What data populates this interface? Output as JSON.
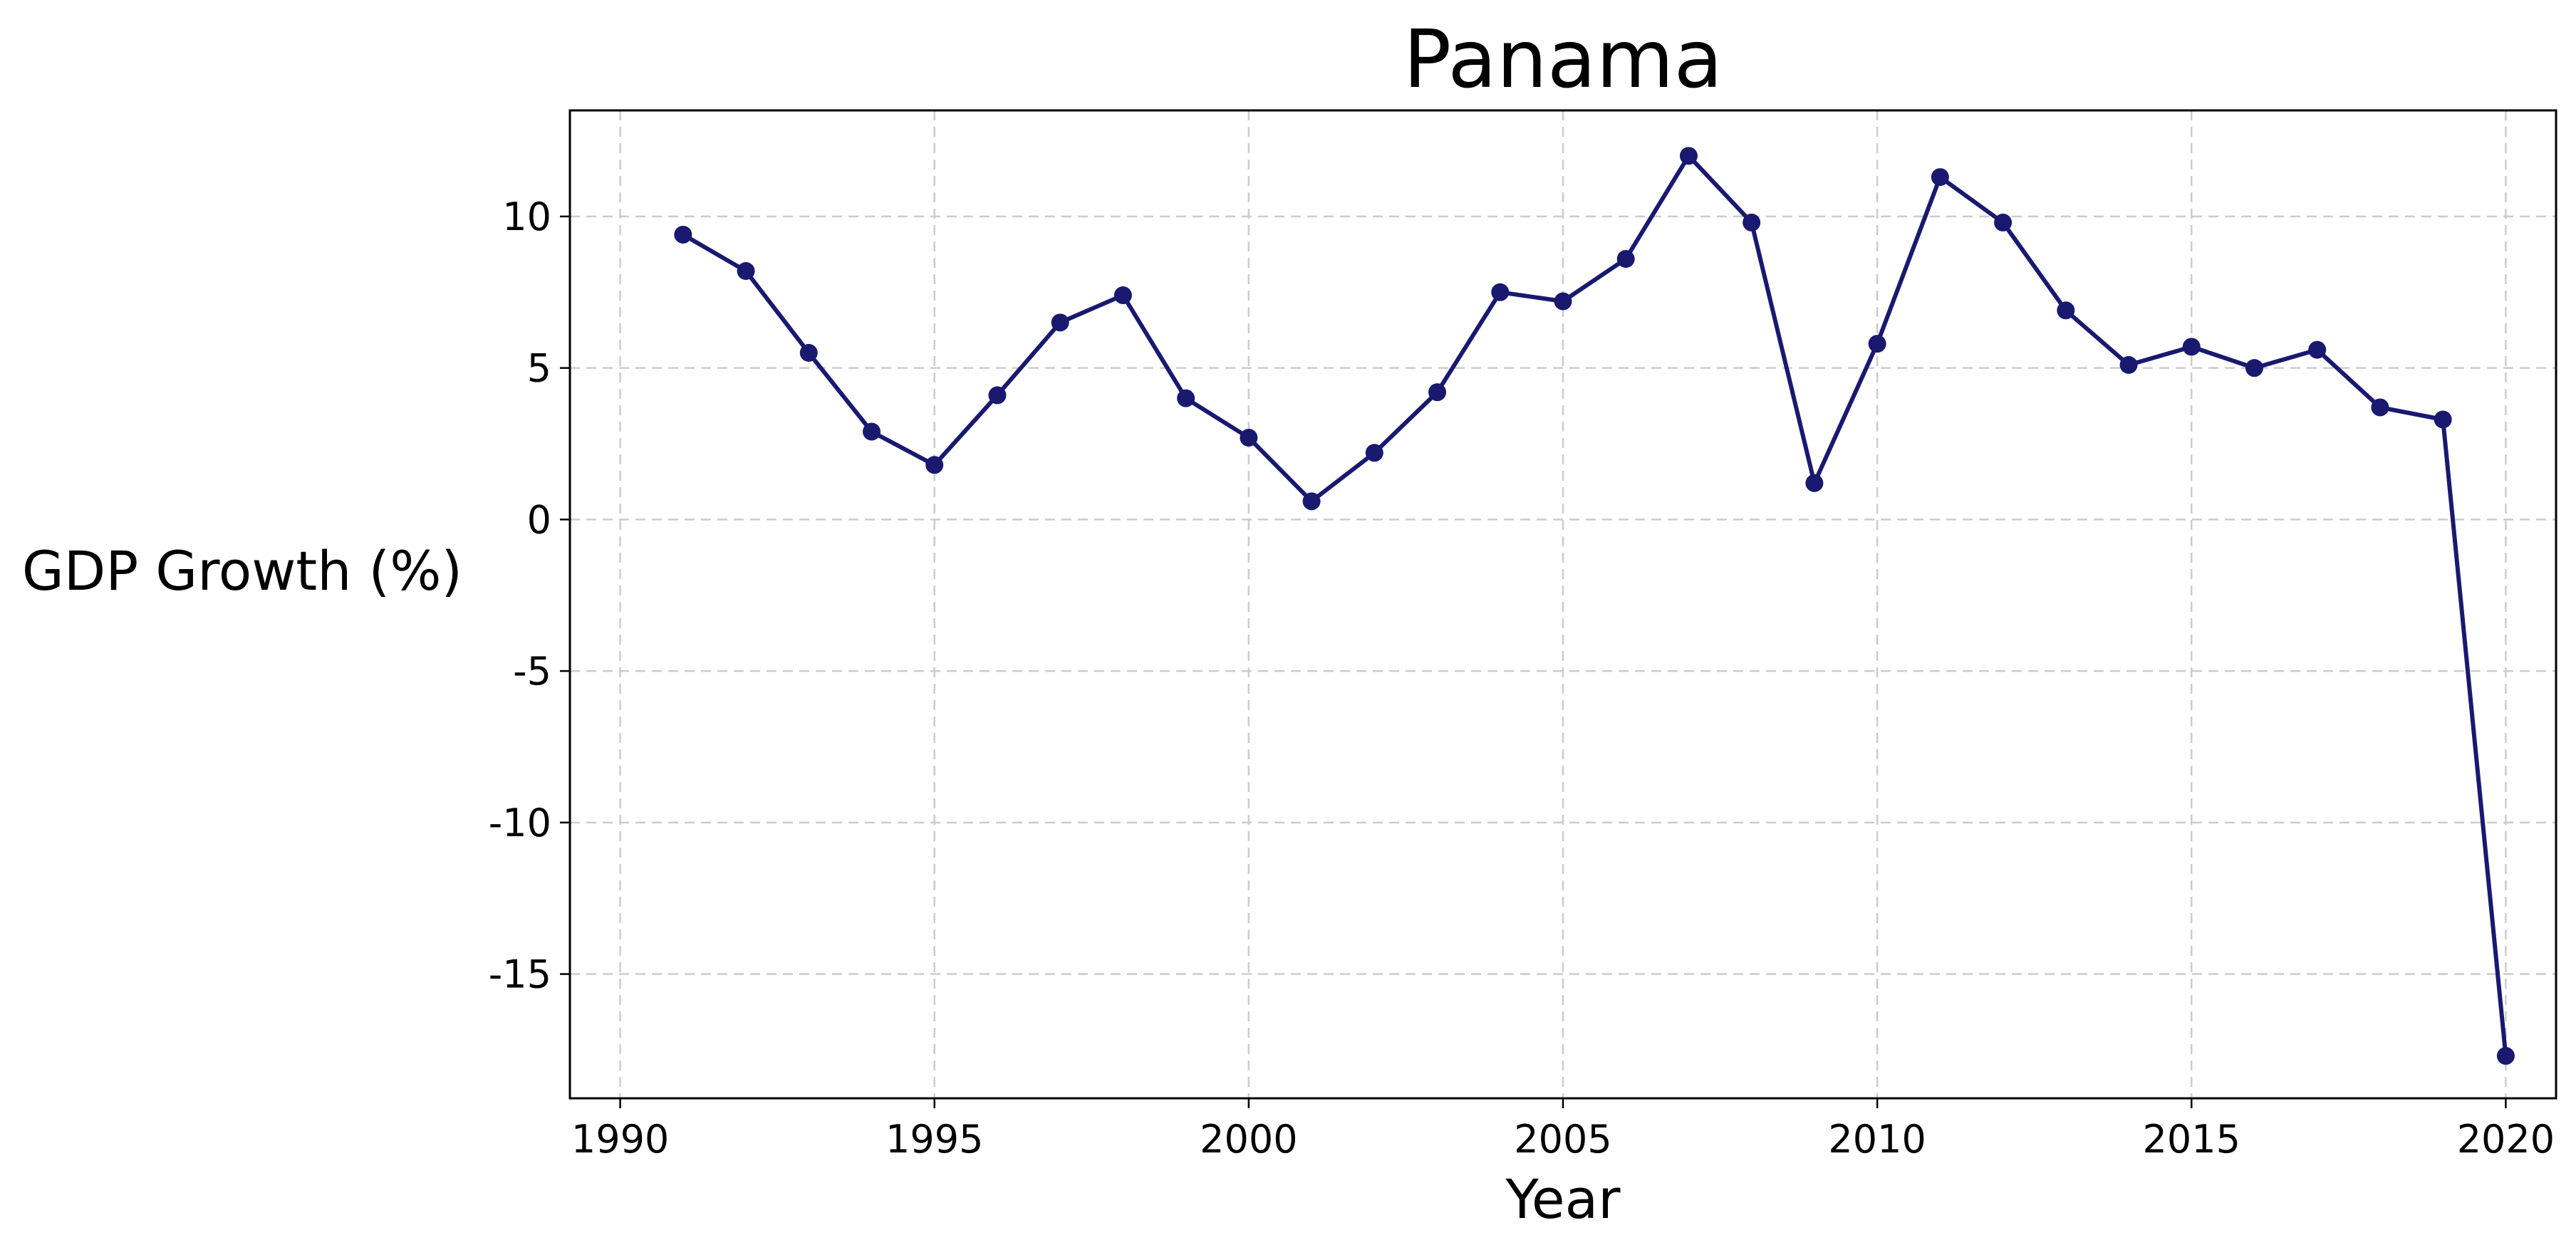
{
  "chart_data": {
    "type": "line",
    "title": "Panama",
    "xlabel": "Year",
    "ylabel": "GDP Growth (%)",
    "xlim": [
      1989.2,
      2020.8
    ],
    "ylim": [
      -19.1,
      13.5
    ],
    "xticks": [
      1990,
      1995,
      2000,
      2005,
      2010,
      2015,
      2020
    ],
    "yticks": [
      10,
      5,
      0,
      -5,
      -10,
      -15
    ],
    "ytick_labels": [
      "10",
      "5",
      "0",
      "-5",
      "-10",
      "-15"
    ],
    "grid": true,
    "legend": "none",
    "series": [
      {
        "color": "#191970",
        "marker": "circle",
        "x": [
          1991,
          1992,
          1993,
          1994,
          1995,
          1996,
          1997,
          1998,
          1999,
          2000,
          2001,
          2002,
          2003,
          2004,
          2005,
          2006,
          2007,
          2008,
          2009,
          2010,
          2011,
          2012,
          2013,
          2014,
          2015,
          2016,
          2017,
          2018,
          2019,
          2020
        ],
        "y": [
          9.4,
          8.2,
          5.5,
          2.9,
          1.8,
          4.1,
          6.5,
          7.4,
          4.0,
          2.7,
          0.6,
          2.2,
          4.2,
          7.5,
          7.2,
          8.6,
          12.0,
          9.8,
          1.2,
          5.8,
          11.3,
          9.8,
          6.9,
          5.1,
          5.7,
          5.0,
          5.6,
          3.7,
          3.3,
          -17.7
        ]
      }
    ]
  }
}
